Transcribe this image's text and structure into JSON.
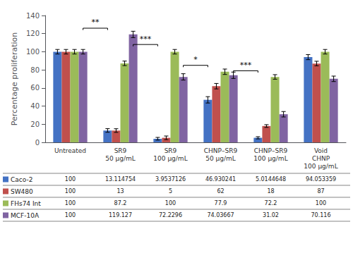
{
  "chart_data": {
    "type": "bar",
    "categories": [
      "Untreated",
      "SR9\n50 μg/mL",
      "SR9\n100 μg/mL",
      "CHNP–SR9\n50 μg/mL",
      "CHNP–SR9\n100 μg/mL",
      "Void\nCHNP\n100 μg/mL"
    ],
    "series": [
      {
        "name": "Caco-2",
        "color": "#4472c4",
        "values": [
          100,
          13.114754,
          3.9537126,
          46.930241,
          5.0144648,
          94.053359
        ],
        "errors": [
          2.5,
          2.0,
          1.5,
          3.5,
          1.2,
          2.8
        ]
      },
      {
        "name": "SW480",
        "color": "#c0504d",
        "values": [
          100,
          13,
          5,
          62,
          18,
          87
        ],
        "errors": [
          2.5,
          2.0,
          2.0,
          3.0,
          1.5,
          2.5
        ]
      },
      {
        "name": "FHs74 Int",
        "color": "#9bbb59",
        "values": [
          100,
          87.2,
          100,
          77.9,
          72.2,
          100
        ],
        "errors": [
          2.5,
          2.5,
          2.5,
          3.0,
          2.5,
          2.5
        ]
      },
      {
        "name": "MCF-10A",
        "color": "#8064a2",
        "values": [
          100,
          119.127,
          72.2296,
          74.03667,
          31.02,
          70.116
        ],
        "errors": [
          2.5,
          3.5,
          3.5,
          3.5,
          3.0,
          3.0
        ]
      }
    ],
    "ylabel": "Percentage proliferation",
    "ylim": [
      0,
      140
    ],
    "yticks": [
      0,
      20,
      40,
      60,
      80,
      100,
      120,
      140
    ],
    "grid": false,
    "annotations": [
      {
        "text": "**",
        "from": "Untreated",
        "to": "SR9\n50 μg/mL",
        "y": 126,
        "text_y": 128
      },
      {
        "text": "***",
        "from": "SR9\n50 μg/mL",
        "to": "SR9\n100 μg/mL",
        "y": 108,
        "text_y": 110
      },
      {
        "text": "*",
        "from": "SR9\n100 μg/mL",
        "to": "CHNP–SR9\n50 μg/mL",
        "y": 85,
        "text_y": 87
      },
      {
        "text": "***",
        "from": "CHNP–SR9\n50 μg/mL",
        "to": "CHNP–SR9\n100 μg/mL",
        "y": 79,
        "text_y": 81
      }
    ]
  }
}
